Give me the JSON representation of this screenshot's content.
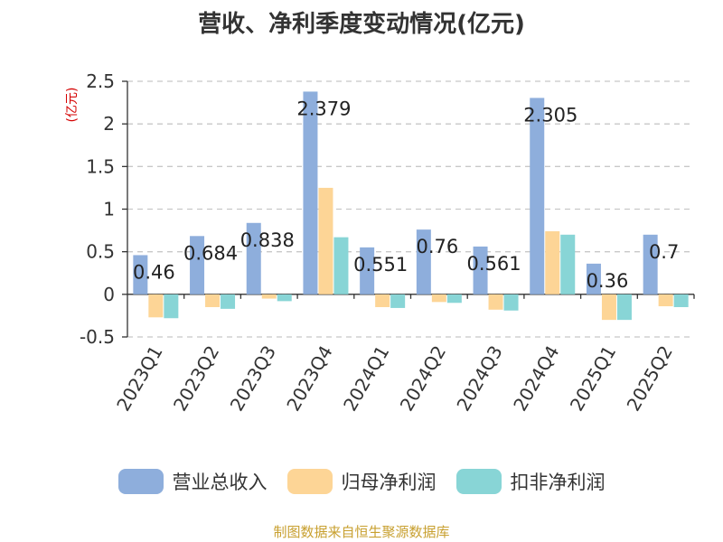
{
  "chart_data": {
    "type": "bar",
    "title": "营收、净利季度变动情况(亿元)",
    "ylabel": "(亿元)",
    "categories": [
      "2023Q1",
      "2023Q2",
      "2023Q3",
      "2023Q4",
      "2024Q1",
      "2024Q2",
      "2024Q3",
      "2024Q4",
      "2025Q1",
      "2025Q2"
    ],
    "ylim": [
      -0.5,
      2.5
    ],
    "yticks": [
      "-0.5",
      "0",
      "0.5",
      "1",
      "1.5",
      "2",
      "2.5"
    ],
    "grid": true,
    "legend_position": "bottom",
    "series": [
      {
        "name": "营业总收入",
        "color": "#8eaedc",
        "values": [
          0.46,
          0.684,
          0.838,
          2.379,
          0.551,
          0.76,
          0.561,
          2.305,
          0.36,
          0.7
        ],
        "labels": [
          "0.46",
          "0.684",
          "0.838",
          "2.379",
          "0.551",
          "0.76",
          "0.561",
          "2.305",
          "0.36",
          "0.7"
        ]
      },
      {
        "name": "归母净利润",
        "color": "#fdd596",
        "values": [
          -0.27,
          -0.15,
          -0.05,
          1.25,
          -0.15,
          -0.09,
          -0.18,
          0.74,
          -0.3,
          -0.14
        ]
      },
      {
        "name": "扣非净利润",
        "color": "#88d5d6",
        "values": [
          -0.28,
          -0.17,
          -0.08,
          0.67,
          -0.16,
          -0.1,
          -0.19,
          0.7,
          -0.3,
          -0.15
        ]
      }
    ]
  },
  "source_text": "制图数据来自恒生聚源数据库"
}
